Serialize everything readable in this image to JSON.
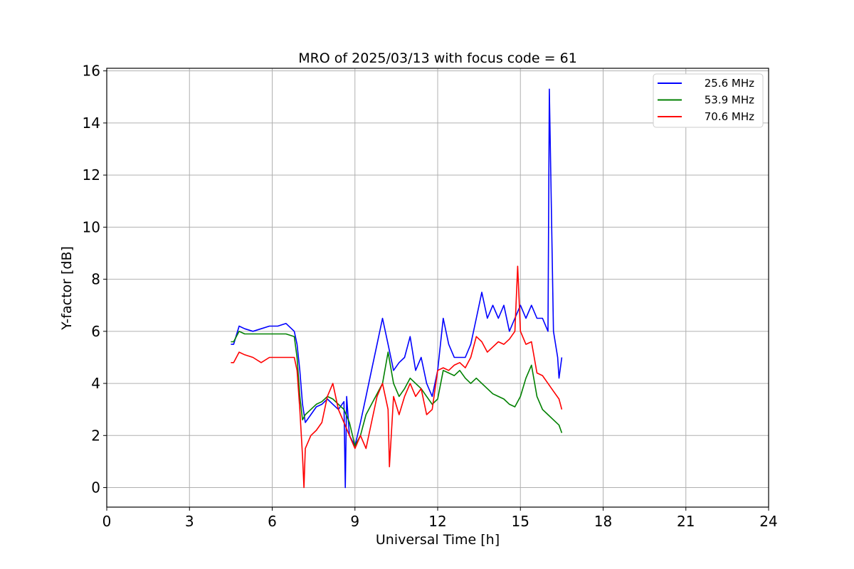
{
  "chart_data": {
    "type": "line",
    "title": "MRO of 2025/03/13 with focus code = 61",
    "xlabel": "Universal Time [h]",
    "ylabel": "Y-factor [dB]",
    "xlim": [
      0,
      24
    ],
    "ylim": [
      -0.75,
      16.1
    ],
    "xticks": [
      0,
      3,
      6,
      9,
      12,
      15,
      18,
      21,
      24
    ],
    "yticks": [
      0,
      2,
      4,
      6,
      8,
      10,
      12,
      14,
      16
    ],
    "grid": true,
    "legend_position": "top-right",
    "series": [
      {
        "name": "25.6 MHz",
        "color": "#0000ff",
        "x": [
          4.5,
          4.6,
          4.8,
          5.0,
          5.3,
          5.6,
          5.9,
          6.2,
          6.5,
          6.8,
          6.9,
          7.0,
          7.1,
          7.2,
          7.4,
          7.6,
          7.8,
          8.0,
          8.2,
          8.4,
          8.6,
          8.65,
          8.7,
          8.8,
          9.0,
          9.2,
          9.4,
          9.6,
          9.8,
          10.0,
          10.2,
          10.4,
          10.6,
          10.8,
          11.0,
          11.2,
          11.4,
          11.6,
          11.8,
          12.0,
          12.2,
          12.4,
          12.6,
          12.8,
          13.0,
          13.2,
          13.4,
          13.6,
          13.8,
          14.0,
          14.2,
          14.4,
          14.6,
          14.8,
          15.0,
          15.2,
          15.4,
          15.6,
          15.8,
          16.0,
          16.05,
          16.2,
          16.35,
          16.4,
          16.5
        ],
        "y": [
          5.5,
          5.5,
          6.2,
          6.1,
          6.0,
          6.1,
          6.2,
          6.2,
          6.3,
          6.0,
          5.5,
          4.5,
          3.2,
          2.5,
          2.8,
          3.1,
          3.2,
          3.4,
          3.2,
          3.0,
          3.3,
          0.0,
          3.5,
          2.0,
          1.6,
          2.5,
          3.5,
          4.5,
          5.5,
          6.5,
          5.5,
          4.5,
          4.8,
          5.0,
          5.8,
          4.5,
          5.0,
          4.0,
          3.5,
          4.5,
          6.5,
          5.5,
          5.0,
          5.0,
          5.0,
          5.5,
          6.5,
          7.5,
          6.5,
          7.0,
          6.5,
          7.0,
          6.0,
          6.5,
          7.0,
          6.5,
          7.0,
          6.5,
          6.5,
          6.0,
          15.3,
          6.0,
          5.0,
          4.2,
          5.0
        ]
      },
      {
        "name": "53.9 MHz",
        "color": "#008000",
        "x": [
          4.5,
          4.6,
          4.8,
          5.0,
          5.3,
          5.6,
          5.9,
          6.2,
          6.5,
          6.8,
          6.9,
          7.0,
          7.1,
          7.2,
          7.4,
          7.6,
          7.8,
          8.0,
          8.2,
          8.4,
          8.6,
          8.8,
          9.0,
          9.2,
          9.4,
          9.6,
          9.8,
          10.0,
          10.2,
          10.4,
          10.6,
          10.8,
          11.0,
          11.2,
          11.4,
          11.6,
          11.8,
          12.0,
          12.2,
          12.4,
          12.6,
          12.8,
          13.0,
          13.2,
          13.4,
          13.6,
          13.8,
          14.0,
          14.2,
          14.4,
          14.6,
          14.8,
          15.0,
          15.2,
          15.4,
          15.6,
          15.8,
          16.0,
          16.2,
          16.4,
          16.5
        ],
        "y": [
          5.6,
          5.6,
          6.0,
          5.9,
          5.9,
          5.9,
          5.9,
          5.9,
          5.9,
          5.8,
          5.0,
          3.5,
          2.6,
          2.8,
          3.0,
          3.2,
          3.3,
          3.5,
          3.4,
          3.2,
          3.0,
          2.5,
          1.6,
          2.0,
          2.8,
          3.2,
          3.6,
          4.0,
          5.2,
          4.0,
          3.5,
          3.8,
          4.2,
          4.0,
          3.8,
          3.5,
          3.2,
          3.4,
          4.5,
          4.4,
          4.3,
          4.5,
          4.2,
          4.0,
          4.2,
          4.0,
          3.8,
          3.6,
          3.5,
          3.4,
          3.2,
          3.1,
          3.5,
          4.2,
          4.7,
          3.5,
          3.0,
          2.8,
          2.6,
          2.4,
          2.1
        ]
      },
      {
        "name": "70.6 MHz",
        "color": "#ff0000",
        "x": [
          4.5,
          4.6,
          4.8,
          5.0,
          5.3,
          5.6,
          5.9,
          6.2,
          6.5,
          6.8,
          6.9,
          7.0,
          7.1,
          7.15,
          7.2,
          7.4,
          7.6,
          7.8,
          8.0,
          8.2,
          8.4,
          8.6,
          8.8,
          9.0,
          9.2,
          9.4,
          9.6,
          9.8,
          10.0,
          10.2,
          10.25,
          10.4,
          10.6,
          10.8,
          11.0,
          11.2,
          11.4,
          11.6,
          11.8,
          12.0,
          12.2,
          12.4,
          12.6,
          12.8,
          13.0,
          13.2,
          13.4,
          13.6,
          13.8,
          14.0,
          14.2,
          14.4,
          14.6,
          14.8,
          14.9,
          15.0,
          15.2,
          15.4,
          15.6,
          15.8,
          16.0,
          16.2,
          16.4,
          16.5
        ],
        "y": [
          4.8,
          4.8,
          5.2,
          5.1,
          5.0,
          4.8,
          5.0,
          5.0,
          5.0,
          5.0,
          4.5,
          3.0,
          1.2,
          0.0,
          1.5,
          2.0,
          2.2,
          2.5,
          3.5,
          4.0,
          3.0,
          2.5,
          2.0,
          1.5,
          2.0,
          1.5,
          2.5,
          3.5,
          4.0,
          3.0,
          0.8,
          3.5,
          2.8,
          3.5,
          4.0,
          3.5,
          3.8,
          2.8,
          3.0,
          4.5,
          4.6,
          4.5,
          4.7,
          4.8,
          4.6,
          5.0,
          5.8,
          5.6,
          5.2,
          5.4,
          5.6,
          5.5,
          5.7,
          6.0,
          8.5,
          6.0,
          5.5,
          5.6,
          4.4,
          4.3,
          4.0,
          3.7,
          3.4,
          3.0
        ]
      }
    ]
  }
}
